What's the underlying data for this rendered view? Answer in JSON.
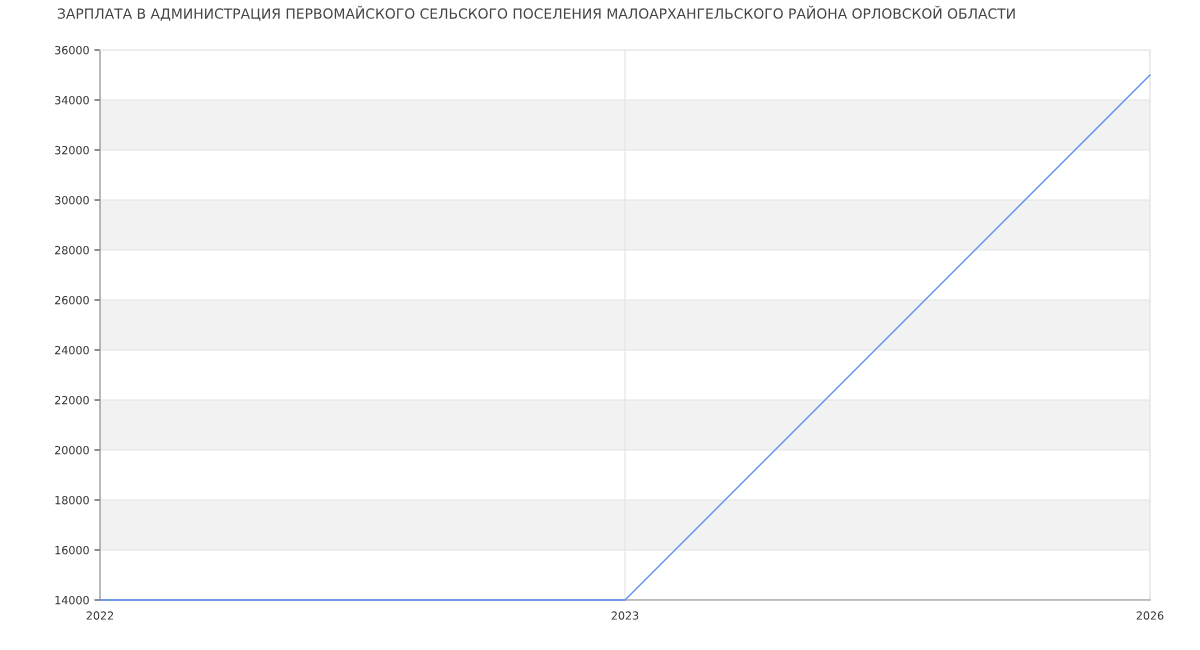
{
  "chart_data": {
    "type": "line",
    "title": "ЗАРПЛАТА В АДМИНИСТРАЦИЯ ПЕРВОМАЙСКОГО СЕЛЬСКОГО ПОСЕЛЕНИЯ МАЛОАРХАНГЕЛЬСКОГО РАЙОНА ОРЛОВСКОЙ ОБЛАСТИ",
    "categories": [
      "2022",
      "2023",
      "2026"
    ],
    "series": [
      {
        "color": "#5b8def",
        "values": [
          14000,
          14000,
          35000
        ]
      }
    ],
    "ylim": [
      14000,
      36000
    ],
    "yticks": [
      14000,
      16000,
      18000,
      20000,
      22000,
      24000,
      26000,
      28000,
      30000,
      32000,
      34000,
      36000
    ],
    "grid": true,
    "legend": false,
    "marker": "none",
    "line_style": "solid"
  }
}
